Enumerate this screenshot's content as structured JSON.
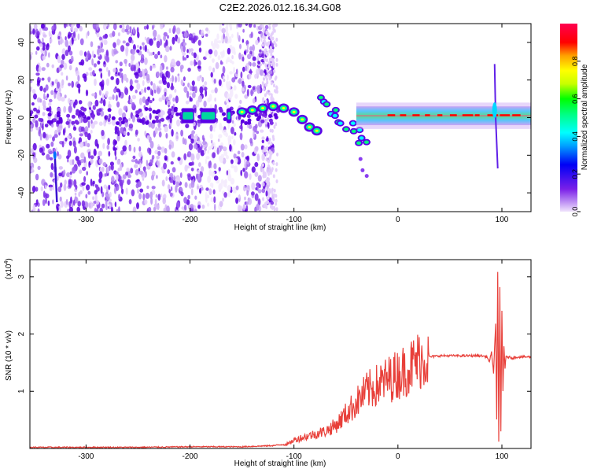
{
  "title": "C2E2.2026.012.16.34.G08",
  "chart_data": [
    {
      "type": "heatmap",
      "xlabel": "Height of straight line (km)",
      "ylabel": "Frequency (Hz)",
      "xlim": [
        -354,
        128
      ],
      "ylim": [
        -50,
        50
      ],
      "xticks": [
        -300,
        -200,
        -100,
        0,
        100
      ],
      "yticks": [
        -40,
        -20,
        0,
        20,
        40
      ],
      "colorbar": {
        "label": "Normalized spectral amplitude",
        "range": [
          0,
          1
        ],
        "ticks": [
          0.0,
          0.2,
          0.4,
          0.6,
          0.8
        ],
        "tick_labels": [
          "0.0",
          "0.2",
          "0.4",
          "0.6",
          "0.8"
        ],
        "colormap": [
          "#e6d2fa",
          "#5a00e6",
          "#0000f5",
          "#00a0ff",
          "#00ffff",
          "#00ff80",
          "#00ff00",
          "#c8ff00",
          "#ffff00",
          "#ffa000",
          "#ff0000",
          "#ff0080",
          "#ff0050"
        ]
      },
      "features": [
        {
          "label": "low-amplitude noise region",
          "x_range": [
            -354,
            -120
          ],
          "amplitude": 0.1
        },
        {
          "label": "signal band near 0 Hz",
          "x_range": [
            -210,
            128
          ],
          "freq": 1,
          "amplitude_range": [
            0.4,
            0.9
          ]
        },
        {
          "label": "spread branch",
          "x_start": -75,
          "x_end": -30,
          "freq_start": 10,
          "freq_end": -30
        },
        {
          "label": "spike",
          "x": 93,
          "freq_range": [
            -30,
            30
          ]
        },
        {
          "label": "streak",
          "x": -330,
          "freq_range": [
            -45,
            -20
          ]
        }
      ]
    },
    {
      "type": "line",
      "xlabel": "Height of straight line (km)",
      "ylabel": "SNR (10 * v/v)",
      "y_multiplier": "(x10",
      "y_multiplier_exp": "4",
      "y_multiplier_close": ")",
      "xlim": [
        -354,
        128
      ],
      "ylim": [
        0,
        3.3
      ],
      "xticks": [
        -300,
        -200,
        -100,
        0,
        100
      ],
      "yticks": [
        1,
        2,
        3
      ],
      "color": "#e8403a",
      "series": [
        {
          "x": [
            -354,
            -300,
            -250,
            -200,
            -150,
            -120,
            -105,
            -100,
            -90,
            -80,
            -70,
            -60,
            -50,
            -40,
            -30,
            -20,
            -10,
            0,
            10,
            20,
            30,
            40,
            50,
            60,
            70,
            80,
            86,
            88,
            90,
            92,
            94,
            95,
            96,
            97,
            98,
            99,
            100,
            101,
            102,
            103,
            104,
            106,
            110,
            115,
            120,
            128
          ],
          "y": [
            0.02,
            0.02,
            0.02,
            0.03,
            0.03,
            0.05,
            0.08,
            0.15,
            0.2,
            0.25,
            0.3,
            0.4,
            0.6,
            0.8,
            1.0,
            1.1,
            1.2,
            1.3,
            1.4,
            1.55,
            1.6,
            1.62,
            1.62,
            1.62,
            1.62,
            1.62,
            1.6,
            1.5,
            1.7,
            1.3,
            2.2,
            0.5,
            3.1,
            0.1,
            2.8,
            0.3,
            2.4,
            1.0,
            1.8,
            1.4,
            1.6,
            1.6,
            1.58,
            1.6,
            1.6,
            1.6
          ]
        }
      ]
    }
  ]
}
